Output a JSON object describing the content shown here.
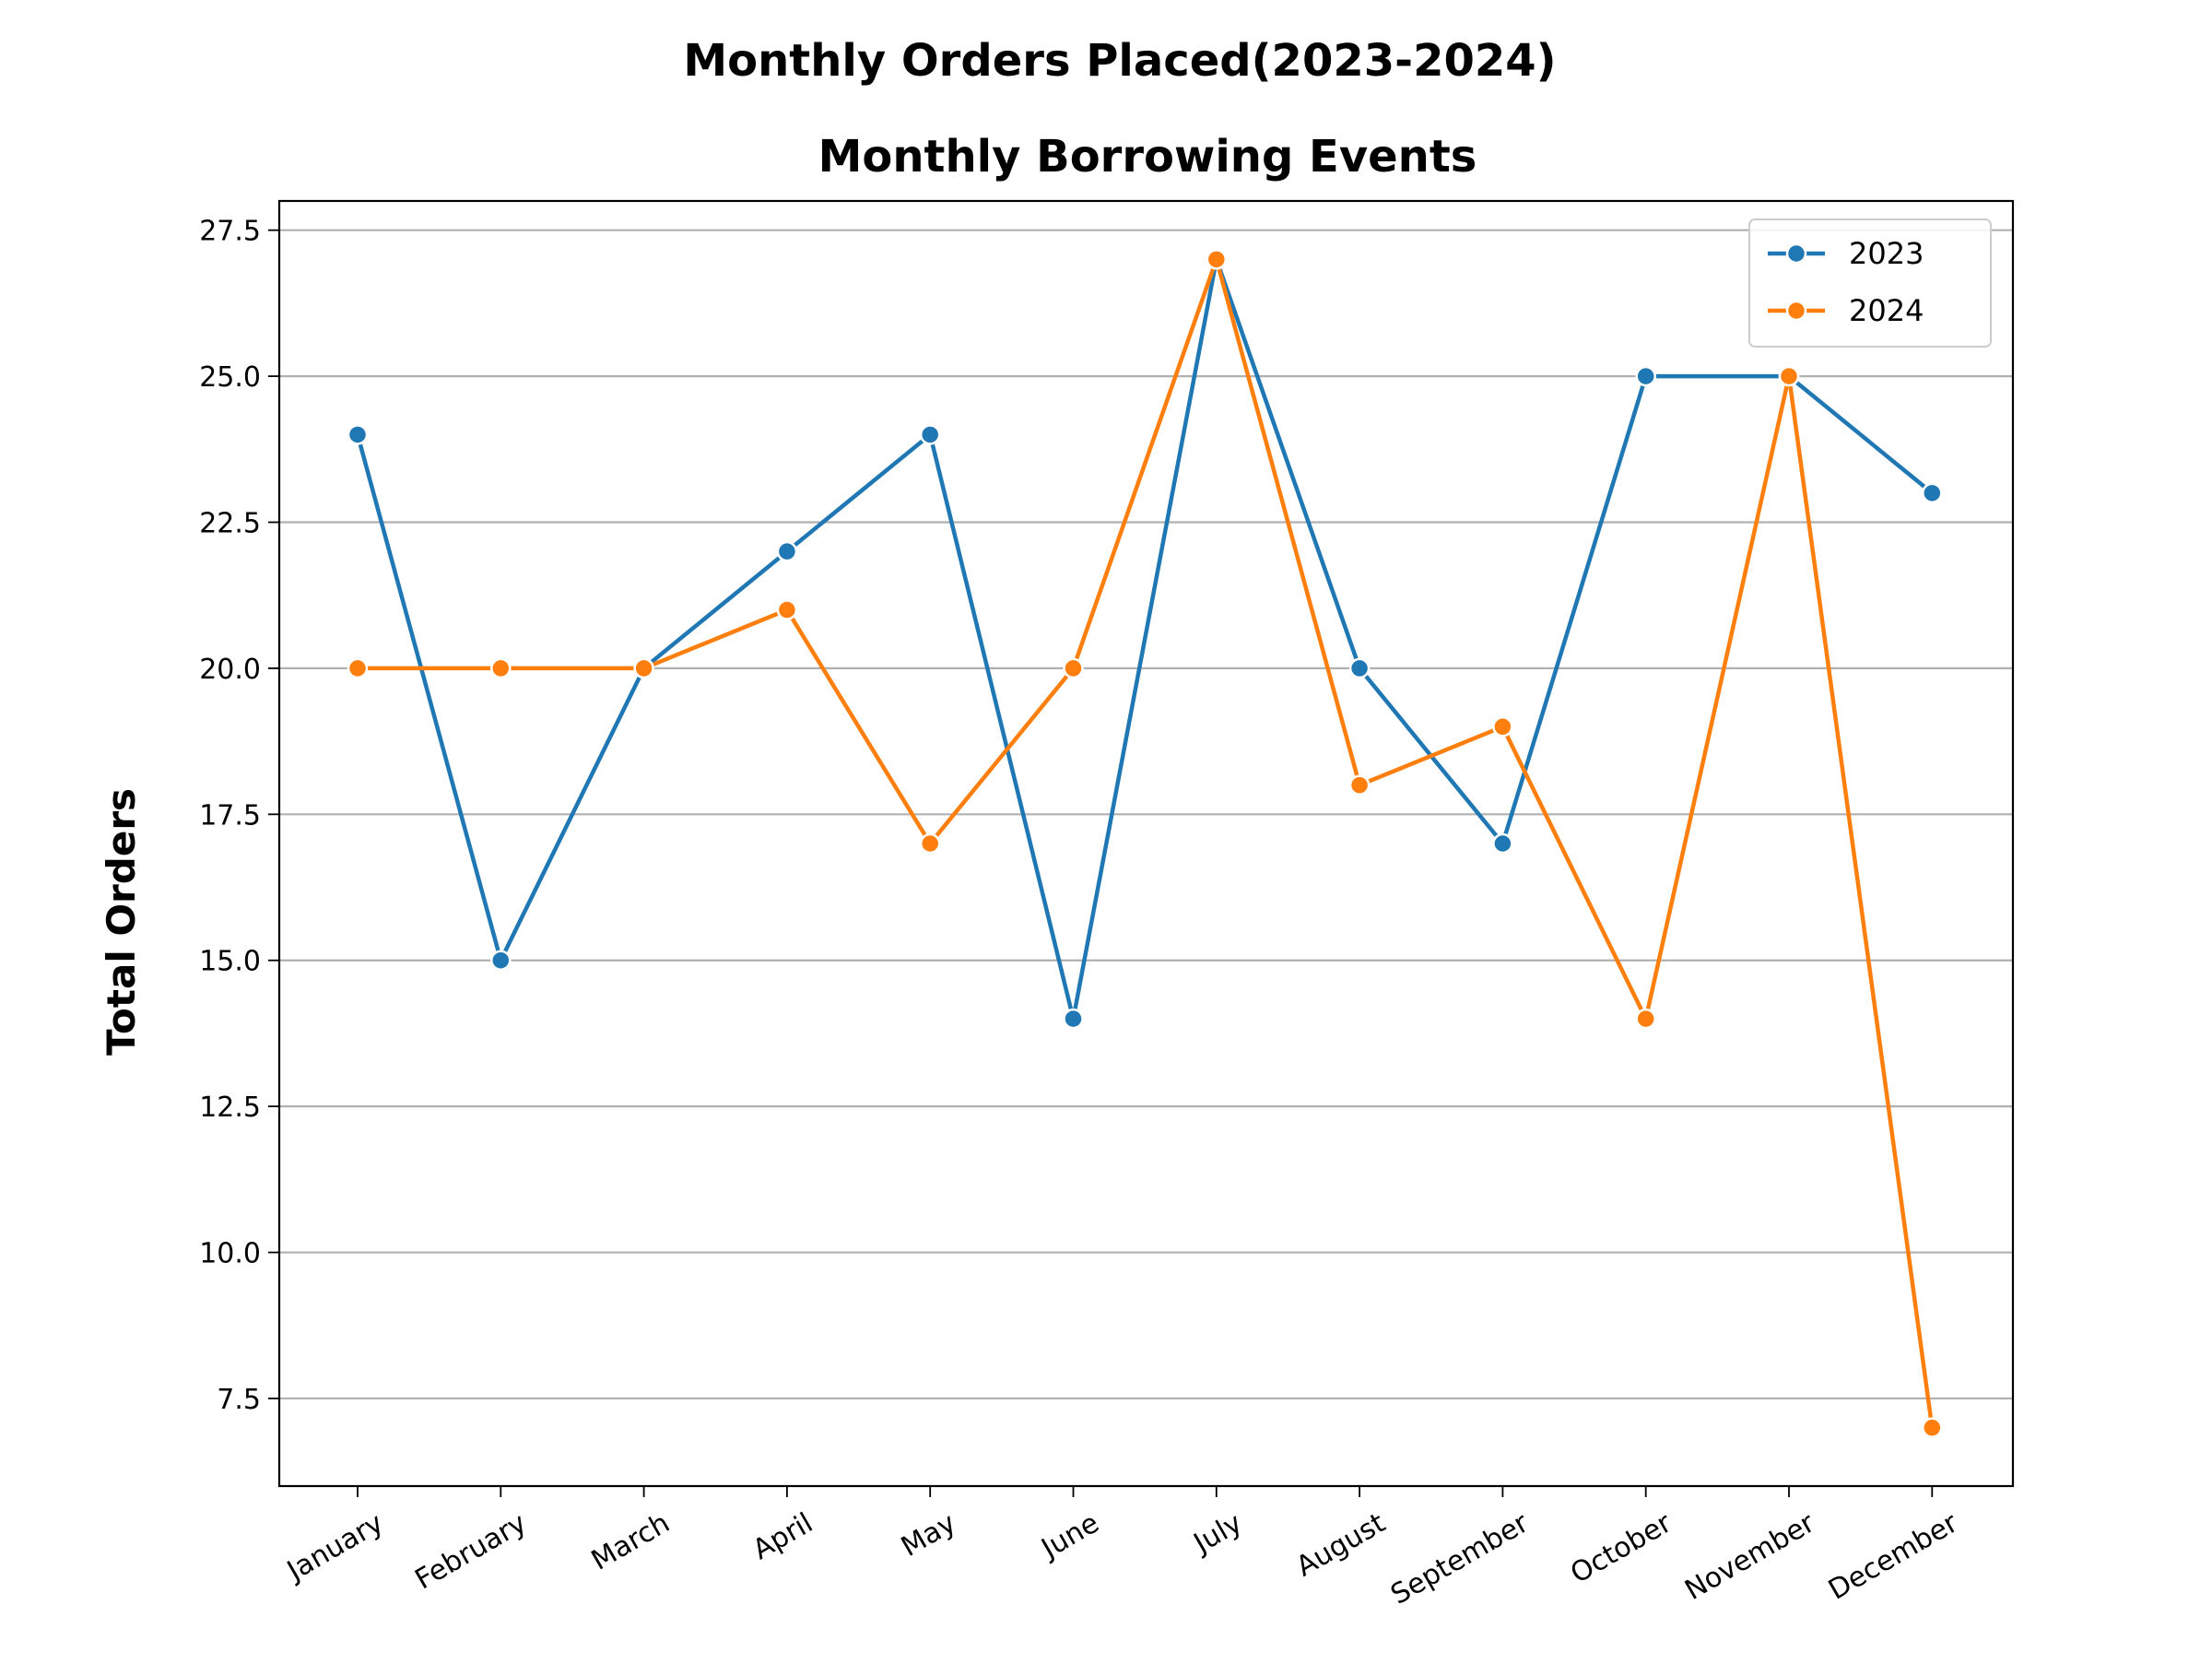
{
  "chart_data": {
    "type": "line",
    "suptitle": "Monthly Orders Placed(2023-2024)",
    "title": "Monthly Borrowing Events",
    "xlabel": "",
    "ylabel": "Total Orders",
    "categories": [
      "January",
      "February",
      "March",
      "April",
      "May",
      "June",
      "July",
      "August",
      "September",
      "October",
      "November",
      "December"
    ],
    "series": [
      {
        "name": "2023",
        "color": "#1f77b4",
        "values": [
          24,
          15,
          20,
          22,
          24,
          14,
          27,
          20,
          17,
          25,
          25,
          23
        ]
      },
      {
        "name": "2024",
        "color": "#ff7f0e",
        "values": [
          20,
          20,
          20,
          21,
          17,
          20,
          27,
          18,
          19,
          14,
          25,
          7
        ]
      }
    ],
    "ylim": [
      6,
      28
    ],
    "yticks": [
      "7.5",
      "10.0",
      "12.5",
      "15.0",
      "17.5",
      "20.0",
      "22.5",
      "25.0",
      "27.5"
    ],
    "grid": "horizontal",
    "legend_position": "top-right"
  }
}
